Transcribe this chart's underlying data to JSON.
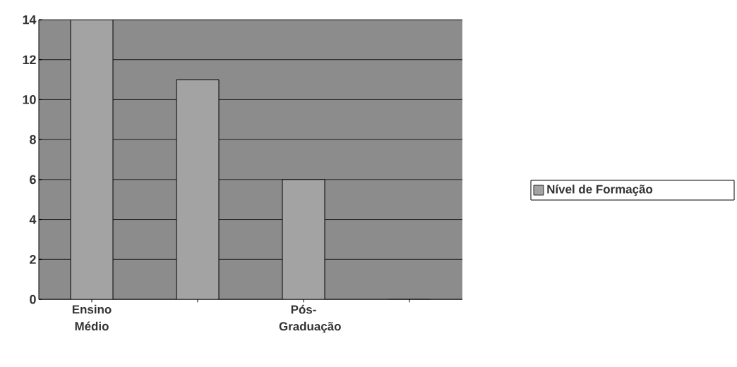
{
  "chart_data": {
    "type": "bar",
    "categories": [
      "Ensino Médio",
      null,
      "Pós-Graduação",
      null
    ],
    "series": [
      {
        "name": "Nível de Formação",
        "color": "#a3a3a3",
        "values": [
          14,
          11,
          6,
          0
        ]
      }
    ],
    "ylim": [
      0,
      14
    ],
    "yticks": [
      0,
      2,
      4,
      6,
      8,
      10,
      12,
      14
    ],
    "grid": "y",
    "legend": "right"
  }
}
